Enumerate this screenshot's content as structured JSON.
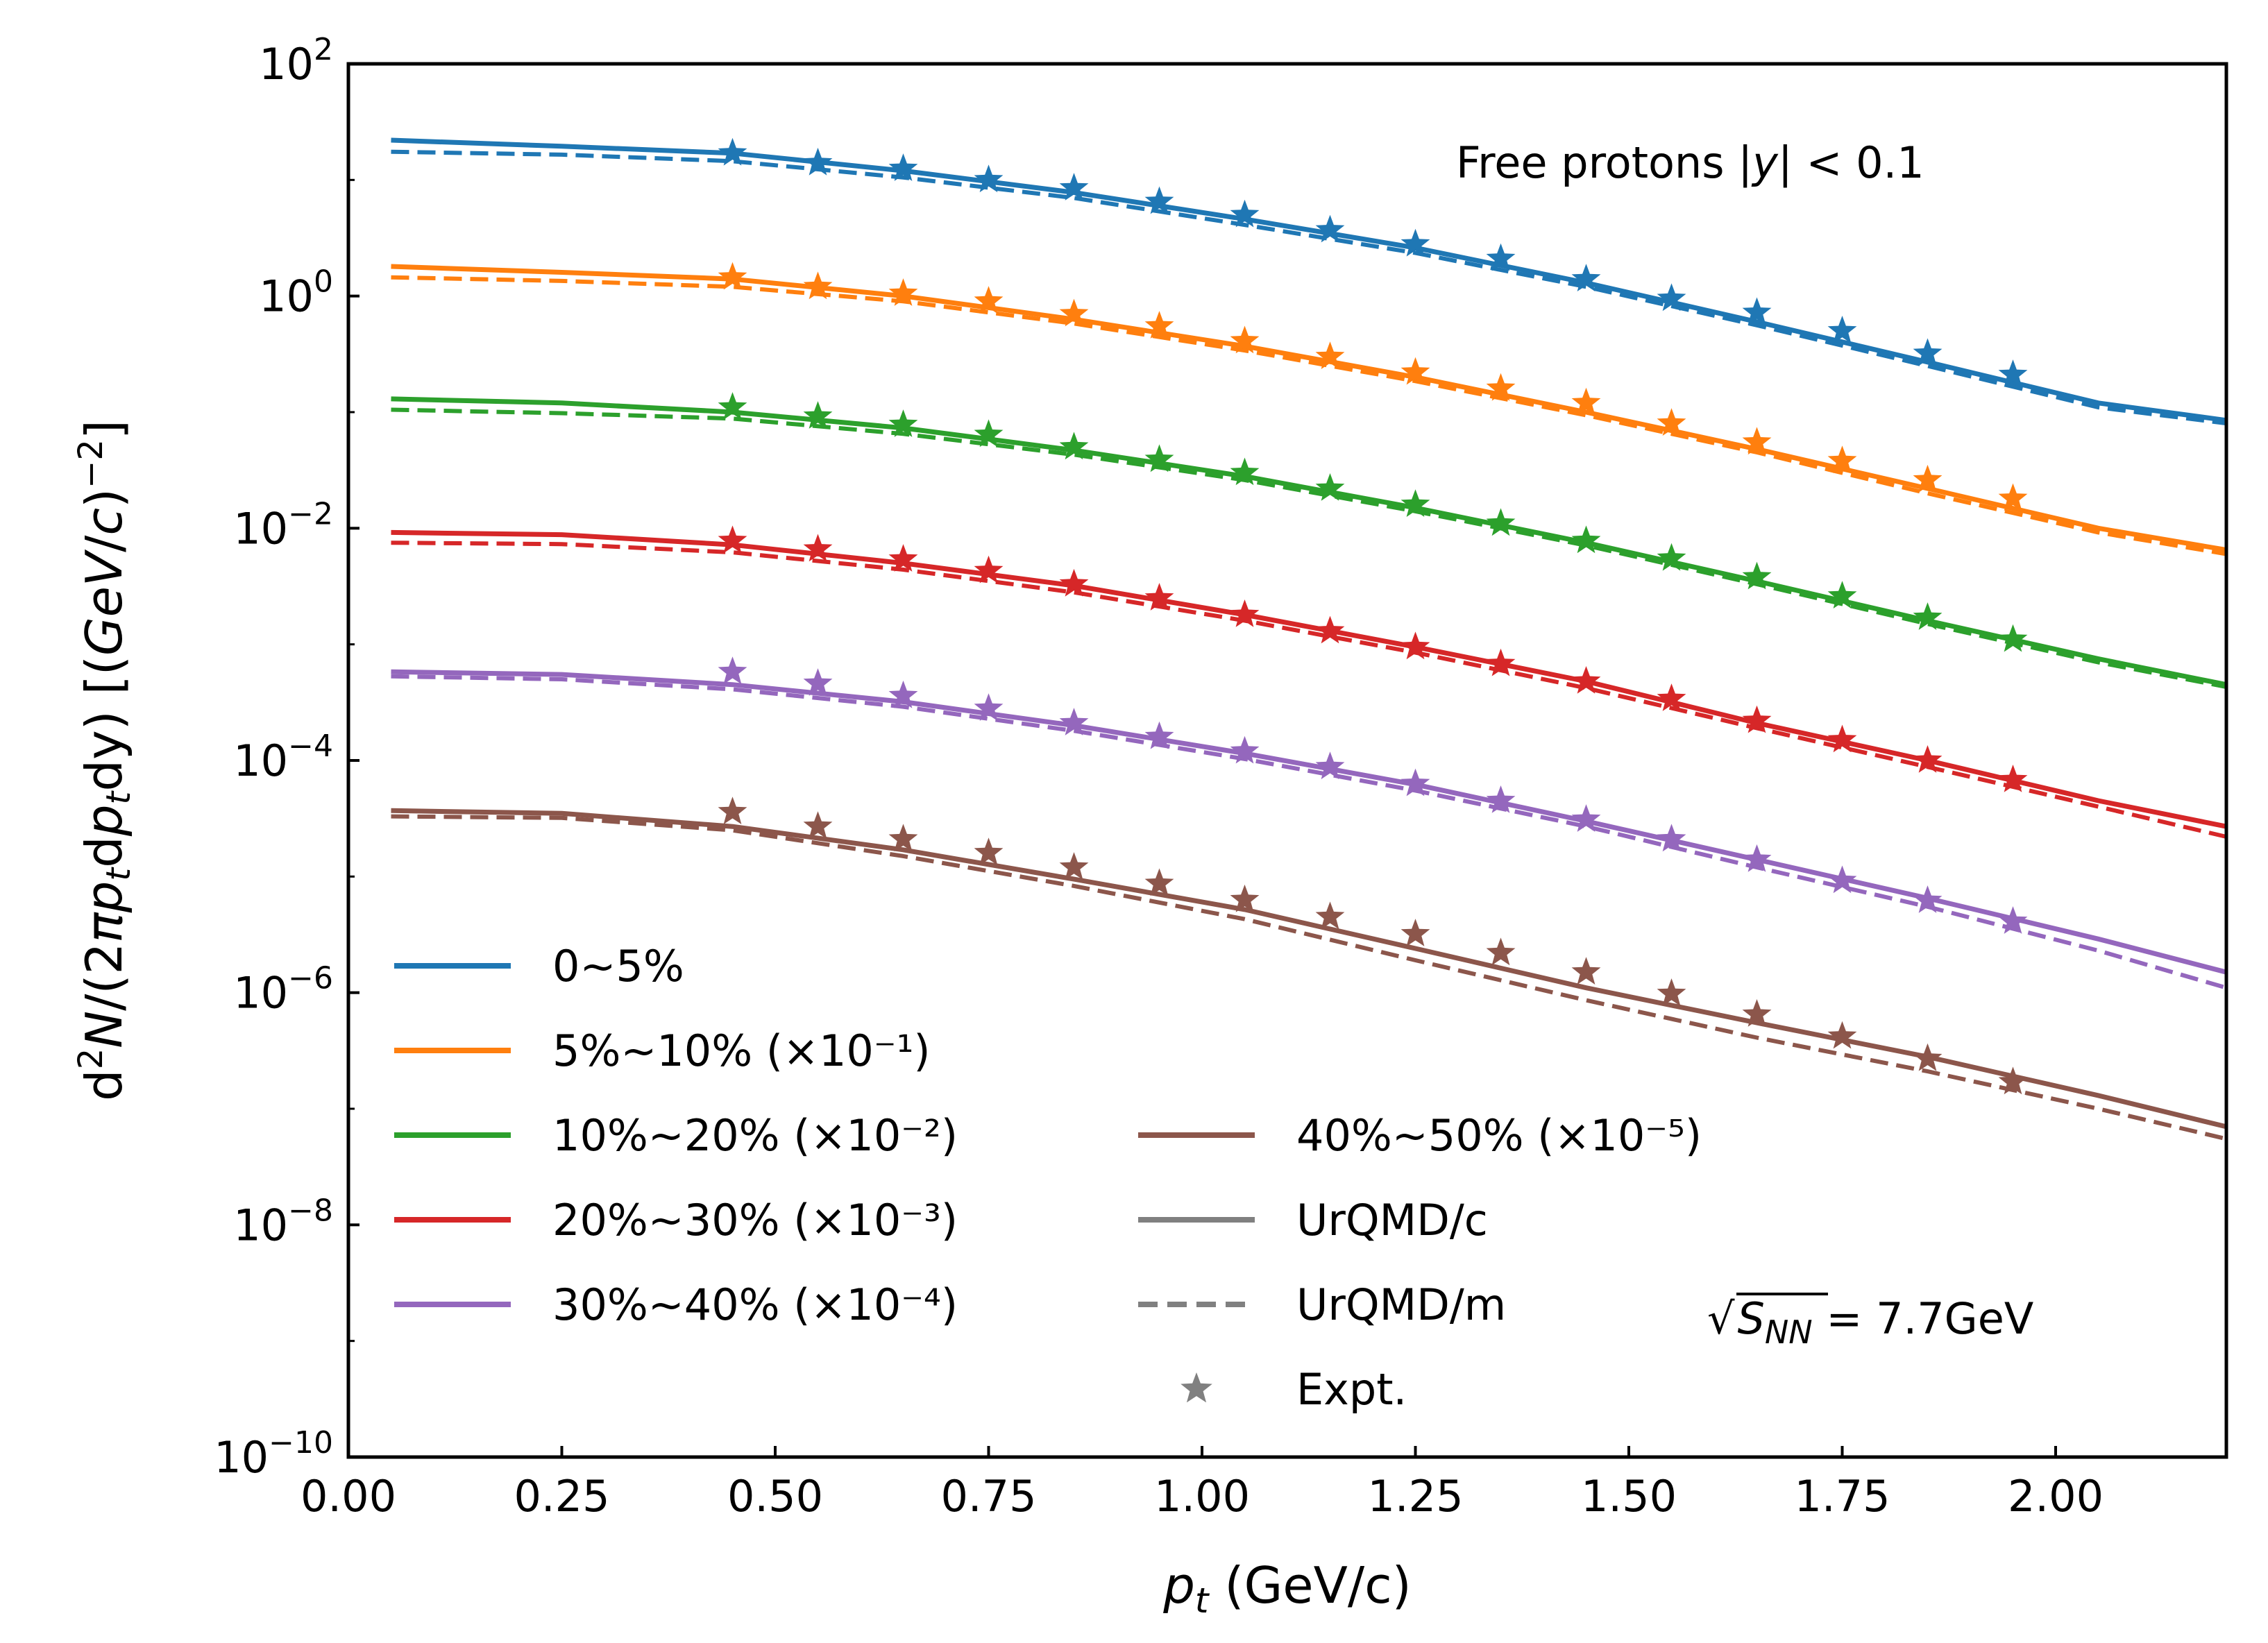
{
  "chart_data": {
    "type": "line",
    "title": "",
    "xlabel": "p_t (GeV/c)",
    "xlabel_parts": {
      "var": "p",
      "sub": "t",
      "rest": " (GeV/c)"
    },
    "ylabel_parts": {
      "d": "d",
      "two": "2",
      "N": "N",
      "open": "/(2",
      "pi": "π",
      "p1": "p",
      "t1": "t",
      "dp": "d",
      "p2": "p",
      "t2": "t",
      "dy": "dy) [(",
      "gev": "GeV",
      "slash": "/",
      "c": "c",
      "close": ")",
      "exp": "−2",
      "bracket": "]"
    },
    "xlim": [
      0.0,
      2.2
    ],
    "ylim_log10": [
      -10,
      2
    ],
    "yscale": "log",
    "x_ticks": [
      "0.00",
      "0.25",
      "0.50",
      "0.75",
      "1.00",
      "1.25",
      "1.50",
      "1.75",
      "2.00"
    ],
    "y_ticks": [
      {
        "base": "10",
        "exp": "2"
      },
      {
        "base": "10",
        "exp": "0"
      },
      {
        "base": "10",
        "exp": "−2"
      },
      {
        "base": "10",
        "exp": "−4"
      },
      {
        "base": "10",
        "exp": "−6"
      },
      {
        "base": "10",
        "exp": "−8"
      },
      {
        "base": "10",
        "exp": "−10"
      }
    ],
    "annotation": {
      "label": "Free protons  |",
      "var": "y",
      "rest": "| < 0.1"
    },
    "energy_label": {
      "root": "√",
      "s": "S",
      "sub": "NN",
      "rest": " = 7.7GeV"
    },
    "x_model": [
      0.05,
      0.25,
      0.45,
      0.65,
      0.85,
      1.05,
      1.25,
      1.45,
      1.65,
      1.85,
      2.05,
      2.2
    ],
    "x_expt": [
      0.45,
      0.55,
      0.65,
      0.75,
      0.85,
      0.95,
      1.05,
      1.15,
      1.25,
      1.35,
      1.45,
      1.55,
      1.65,
      1.75,
      1.85,
      1.95
    ],
    "series": [
      {
        "name": "0~5%",
        "color": "#1f77b4",
        "c": [
          22,
          19.5,
          17,
          12,
          7.8,
          4.6,
          2.6,
          1.3,
          0.6,
          0.27,
          0.12,
          0.085
        ],
        "m": [
          17.5,
          16.5,
          14.5,
          10.5,
          7,
          4.1,
          2.35,
          1.2,
          0.56,
          0.25,
          0.11,
          0.08
        ],
        "expt": [
          17,
          14,
          12.5,
          10,
          8.5,
          6.5,
          5,
          3.7,
          2.8,
          2.1,
          1.4,
          0.95,
          0.72,
          0.5,
          0.32,
          0.21
        ]
      },
      {
        "name": "5%~10% (×10⁻¹)",
        "color": "#ff7f0e",
        "c": [
          1.8,
          1.6,
          1.4,
          1.0,
          0.63,
          0.37,
          0.2,
          0.1,
          0.048,
          0.022,
          0.01,
          0.0065
        ],
        "m": [
          1.45,
          1.35,
          1.2,
          0.9,
          0.58,
          0.34,
          0.185,
          0.094,
          0.045,
          0.02,
          0.0092,
          0.006
        ],
        "expt": [
          1.45,
          1.2,
          1.05,
          0.9,
          0.7,
          0.55,
          0.41,
          0.3,
          0.22,
          0.16,
          0.12,
          0.08,
          0.055,
          0.038,
          0.026,
          0.018
        ]
      },
      {
        "name": "10%~20% (×10⁻²)",
        "color": "#2ca02c",
        "c": [
          0.13,
          0.12,
          0.1,
          0.073,
          0.047,
          0.028,
          0.015,
          0.0075,
          0.0035,
          0.0016,
          0.00075,
          0.00045
        ],
        "m": [
          0.105,
          0.098,
          0.088,
          0.065,
          0.043,
          0.026,
          0.014,
          0.0071,
          0.0033,
          0.0015,
          0.0007,
          0.00043
        ],
        "expt": [
          0.11,
          0.092,
          0.078,
          0.064,
          0.05,
          0.039,
          0.03,
          0.022,
          0.016,
          0.011,
          0.0078,
          0.0055,
          0.0038,
          0.0026,
          0.0017,
          0.0011
        ]
      },
      {
        "name": "20%~30% (×10⁻³)",
        "color": "#d62728",
        "c": [
          0.0092,
          0.0088,
          0.0072,
          0.005,
          0.0032,
          0.0018,
          0.00095,
          0.00048,
          0.00021,
          0.0001,
          4.5e-05,
          2.7e-05
        ],
        "m": [
          0.0075,
          0.0073,
          0.0062,
          0.0044,
          0.0028,
          0.0016,
          0.00085,
          0.00042,
          0.00019,
          8.8e-05,
          4e-05,
          2.2e-05
        ],
        "expt": [
          0.0078,
          0.0066,
          0.0054,
          0.0043,
          0.0033,
          0.0025,
          0.0018,
          0.0013,
          0.00095,
          0.00068,
          0.00048,
          0.00034,
          0.00022,
          0.00015,
          0.0001,
          6.8e-05
        ]
      },
      {
        "name": "30%~40% (×10⁻⁴)",
        "color": "#9467bd",
        "c": [
          0.00058,
          0.00055,
          0.00045,
          0.00032,
          0.0002,
          0.000115,
          6.2e-05,
          3e-05,
          1.4e-05,
          6.5e-06,
          2.9e-06,
          1.5e-06
        ],
        "m": [
          0.00053,
          0.0005,
          0.00041,
          0.00029,
          0.00018,
          0.000103,
          5.5e-05,
          2.7e-05,
          1.2e-05,
          5.5e-06,
          2.3e-06,
          1.1e-06
        ],
        "expt": [
          0.00058,
          0.00046,
          0.00036,
          0.00028,
          0.00021,
          0.00016,
          0.00012,
          8.8e-05,
          6.3e-05,
          4.5e-05,
          3.1e-05,
          2.1e-05,
          1.4e-05,
          9.2e-06,
          6.2e-06,
          4.1e-06
        ]
      },
      {
        "name": "40%~50% (×10⁻⁵)",
        "color": "#8c564b",
        "c": [
          3.7e-05,
          3.5e-05,
          2.7e-05,
          1.7e-05,
          9.5e-06,
          5.2e-06,
          2.4e-06,
          1.1e-06,
          5.5e-07,
          2.8e-07,
          1.3e-07,
          7e-08
        ],
        "m": [
          3.3e-05,
          3.2e-05,
          2.5e-05,
          1.5e-05,
          8.3e-06,
          4.3e-06,
          1.9e-06,
          8.6e-07,
          4.1e-07,
          2.1e-07,
          1e-07,
          5.5e-08
        ],
        "expt": [
          3.6e-05,
          2.7e-05,
          2.1e-05,
          1.6e-05,
          1.2e-05,
          8.7e-06,
          6.3e-06,
          4.5e-06,
          3.2e-06,
          2.2e-06,
          1.5e-06,
          9.8e-07,
          6.5e-07,
          4.2e-07,
          2.7e-07,
          1.7e-07
        ]
      }
    ],
    "legend": {
      "col1": [
        {
          "label": "0~5%",
          "series": 0
        },
        {
          "label": "5%~10% (×10⁻¹)",
          "series": 1
        },
        {
          "label": "10%~20% (×10⁻²)",
          "series": 2
        },
        {
          "label": "20%~30% (×10⁻³)",
          "series": 3
        },
        {
          "label": "30%~40% (×10⁻⁴)",
          "series": 4
        }
      ],
      "col2": [
        {
          "label": "40%~50% (×10⁻⁵)",
          "kind": "line",
          "color": "#8c564b"
        },
        {
          "label": "UrQMD/c",
          "kind": "solid",
          "color": "#808080"
        },
        {
          "label": "UrQMD/m",
          "kind": "dashed",
          "color": "#808080"
        },
        {
          "label": "Expt.",
          "kind": "star",
          "color": "#808080"
        }
      ],
      "placement": "lower-left"
    }
  }
}
